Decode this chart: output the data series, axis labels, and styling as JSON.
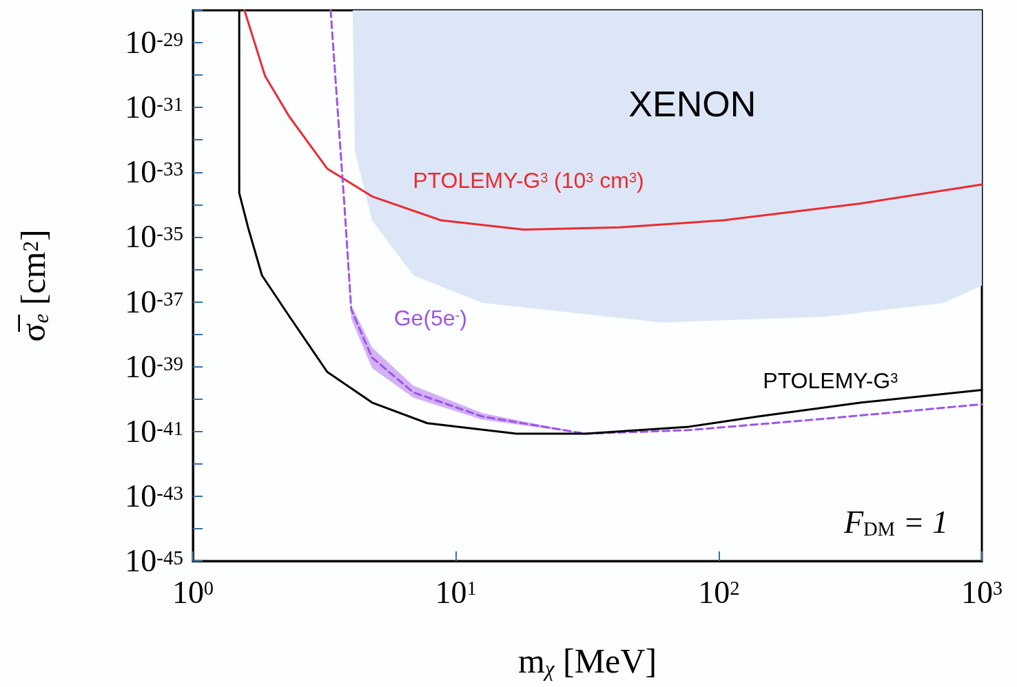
{
  "chart_data": {
    "type": "line",
    "xlabel": "m$_{χ}$ [MeV]",
    "ylabel": "σ̅$_{e}$ [cm$^{2}$]",
    "log": "xy",
    "grid": false,
    "legend": false,
    "xlim": [
      1,
      1000
    ],
    "ylim": [
      1e-45,
      1e-28
    ],
    "xticks": [
      {
        "value": 1,
        "label": "10$^{0}$"
      },
      {
        "value": 10,
        "label": "10$^{1}$"
      },
      {
        "value": 100,
        "label": "10$^{2}$"
      },
      {
        "value": 1000,
        "label": "10$^{3}$"
      }
    ],
    "yticks": [
      {
        "value": 1e-45,
        "label": "10$^{-45}$"
      },
      {
        "value": 1e-44,
        "label": null
      },
      {
        "value": 1e-43,
        "label": "10$^{-43}$"
      },
      {
        "value": 1e-42,
        "label": null
      },
      {
        "value": 1e-41,
        "label": "10$^{-41}$"
      },
      {
        "value": 1e-40,
        "label": null
      },
      {
        "value": 1e-39,
        "label": "10$^{-39}$"
      },
      {
        "value": 1e-38,
        "label": null
      },
      {
        "value": 1e-37,
        "label": "10$^{-37}$"
      },
      {
        "value": 1e-36,
        "label": null
      },
      {
        "value": 1e-35,
        "label": "10$^{-35}$"
      },
      {
        "value": 1e-34,
        "label": null
      },
      {
        "value": 1e-33,
        "label": "10$^{-33}$"
      },
      {
        "value": 1e-32,
        "label": null
      },
      {
        "value": 1e-31,
        "label": "10$^{-31}$"
      },
      {
        "value": 1e-30,
        "label": null
      },
      {
        "value": 1e-29,
        "label": "10$^{-29}$"
      },
      {
        "value": 1e-28,
        "label": null
      }
    ],
    "series": [
      {
        "name": "XENON",
        "type": "area",
        "color": "#dce6f7",
        "x": [
          4.05,
          4.13,
          4.8,
          6.89,
          12.6,
          60.4,
          257,
          717,
          1000,
          1000
        ],
        "values": [
          1e-28,
          4.4e-33,
          3.3e-35,
          6.6e-37,
          9.3e-38,
          2.3e-38,
          3.5e-38,
          9.3e-38,
          3.2e-37,
          1e-28
        ]
      },
      {
        "name": "PTOLEMY-G$^{3}$ (10$^{3}$ cm$^{3}$)",
        "type": "line",
        "color": "#ec2a30",
        "line_style": "solid",
        "x": [
          1.57,
          1.88,
          2.33,
          3.24,
          4.8,
          8.77,
          18.1,
          42.1,
          104,
          348,
          1000
        ],
        "values": [
          1e-28,
          9.5e-31,
          5.1e-32,
          1.3e-33,
          1.8e-34,
          3.3e-35,
          1.7e-35,
          2e-35,
          3.3e-35,
          1.1e-34,
          4.2e-34
        ]
      },
      {
        "name": "Ge(5e$^{-}$)",
        "type": "line",
        "color": "#9d55e8",
        "line_style": "dashed",
        "x": [
          3.34,
          3.77,
          4.0,
          4.8,
          6.89,
          12.6,
          31.1,
          76.9,
          257,
          1000
        ],
        "values": [
          1e-28,
          8.7e-35,
          5.8e-38,
          1.9e-39,
          1.6e-40,
          2.9e-41,
          8.5e-42,
          1.1e-41,
          2.5e-41,
          6.9e-41
        ],
        "lower": [
          1e-28,
          8.7e-35,
          3e-38,
          9e-40,
          1.1e-40,
          2.3e-41,
          8.5e-42,
          1.1e-41,
          2.5e-41,
          6.9e-41
        ],
        "upper": [
          1e-28,
          8.7e-35,
          8e-38,
          3.9e-39,
          2.6e-40,
          3.7e-41,
          8.5e-42,
          1.1e-41,
          2.5e-41,
          6.9e-41
        ]
      },
      {
        "name": "PTOLEMY-G$^{3}$",
        "type": "line",
        "color": "#000000",
        "line_style": "solid",
        "x": [
          1.5,
          1.5,
          1.62,
          1.83,
          2.33,
          3.24,
          4.8,
          7.78,
          17,
          31.1,
          76.9,
          141,
          348,
          1000
        ],
        "values": [
          1e-28,
          2.3e-34,
          2e-35,
          6.6e-37,
          3.5e-38,
          6.9e-40,
          7.8e-41,
          1.8e-41,
          8.5e-42,
          8.5e-42,
          1.4e-41,
          2.9e-41,
          7.8e-41,
          1.9e-40
        ]
      }
    ],
    "annotations": [
      "F$_{DM}$ = 1"
    ]
  }
}
